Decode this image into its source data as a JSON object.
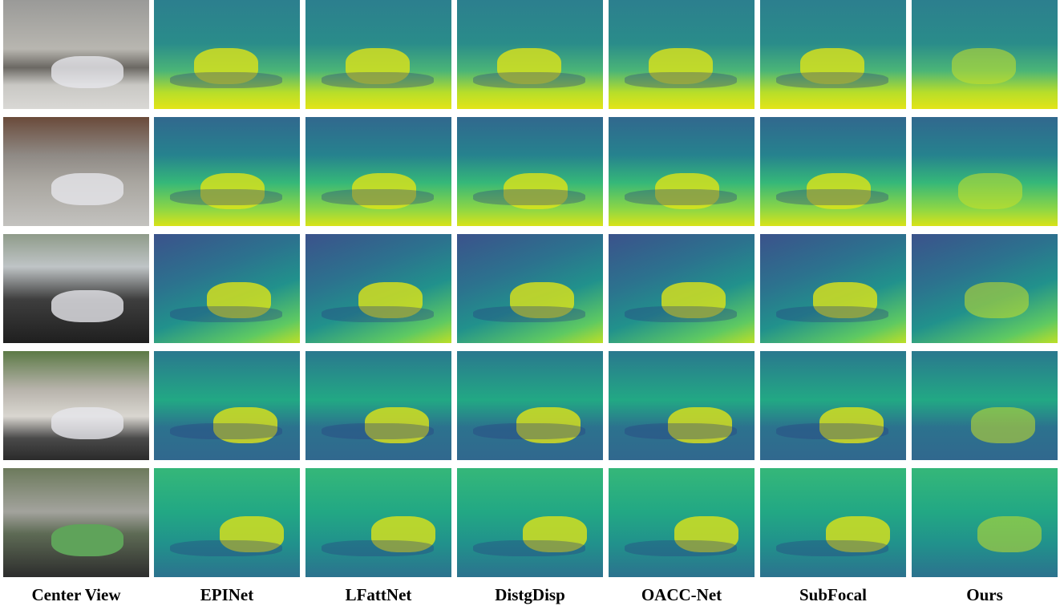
{
  "columns": [
    "Center View",
    "EPINet",
    "LFattNet",
    "DistgDisp",
    "OACC-Net",
    "SubFocal",
    "Ours"
  ]
}
